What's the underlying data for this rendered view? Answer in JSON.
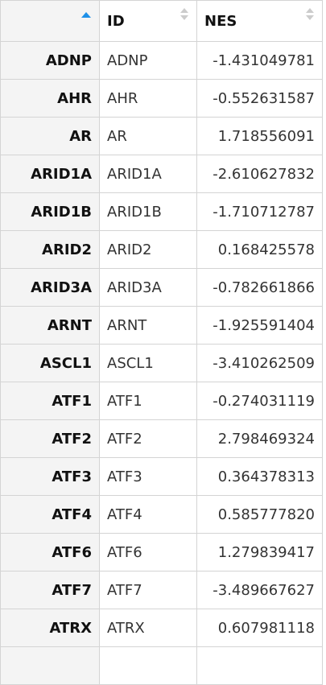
{
  "table": {
    "columns": [
      {
        "key": "rowname",
        "label": ""
      },
      {
        "key": "id",
        "label": "ID"
      },
      {
        "key": "nes",
        "label": "NES"
      }
    ],
    "sort": {
      "column": "rowname",
      "direction": "ascending",
      "active_color": "#1e90e8"
    },
    "rows": [
      {
        "rowname": "ADNP",
        "id": "ADNP",
        "nes": "-1.431049781"
      },
      {
        "rowname": "AHR",
        "id": "AHR",
        "nes": "-0.552631587"
      },
      {
        "rowname": "AR",
        "id": "AR",
        "nes": "1.718556091"
      },
      {
        "rowname": "ARID1A",
        "id": "ARID1A",
        "nes": "-2.610627832"
      },
      {
        "rowname": "ARID1B",
        "id": "ARID1B",
        "nes": "-1.710712787"
      },
      {
        "rowname": "ARID2",
        "id": "ARID2",
        "nes": "0.168425578"
      },
      {
        "rowname": "ARID3A",
        "id": "ARID3A",
        "nes": "-0.782661866"
      },
      {
        "rowname": "ARNT",
        "id": "ARNT",
        "nes": "-1.925591404"
      },
      {
        "rowname": "ASCL1",
        "id": "ASCL1",
        "nes": "-3.410262509"
      },
      {
        "rowname": "ATF1",
        "id": "ATF1",
        "nes": "-0.274031119"
      },
      {
        "rowname": "ATF2",
        "id": "ATF2",
        "nes": "2.798469324"
      },
      {
        "rowname": "ATF3",
        "id": "ATF3",
        "nes": "0.364378313"
      },
      {
        "rowname": "ATF4",
        "id": "ATF4",
        "nes": "0.585777820"
      },
      {
        "rowname": "ATF6",
        "id": "ATF6",
        "nes": "1.279839417"
      },
      {
        "rowname": "ATF7",
        "id": "ATF7",
        "nes": "-3.489667627"
      },
      {
        "rowname": "ATRX",
        "id": "ATRX",
        "nes": "0.607981118"
      }
    ]
  }
}
